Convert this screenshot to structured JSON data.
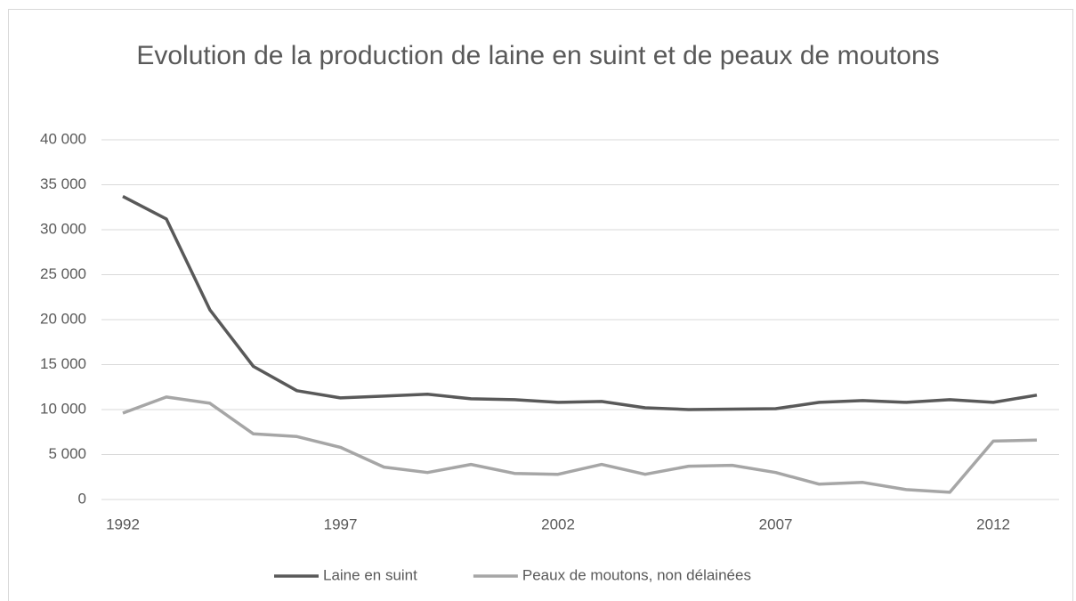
{
  "chart_data": {
    "type": "line",
    "title": "Evolution de la production de laine en suint et de peaux de moutons",
    "x": [
      1992,
      1993,
      1994,
      1995,
      1996,
      1997,
      1998,
      1999,
      2000,
      2001,
      2002,
      2003,
      2004,
      2005,
      2006,
      2007,
      2008,
      2009,
      2010,
      2011,
      2012,
      2013
    ],
    "series": [
      {
        "name": "Laine en suint",
        "color": "#595959",
        "values": [
          33700,
          31200,
          21100,
          14800,
          12100,
          11300,
          11500,
          11700,
          11200,
          11100,
          10800,
          10900,
          10200,
          10000,
          10050,
          10100,
          10800,
          11000,
          10800,
          11100,
          10800,
          11600
        ]
      },
      {
        "name": "Peaux de moutons, non délainées",
        "color": "#a6a6a6",
        "values": [
          9600,
          11400,
          10700,
          7300,
          7000,
          5800,
          3600,
          3000,
          3900,
          2900,
          2800,
          3900,
          2800,
          3700,
          3800,
          3000,
          1700,
          1900,
          1100,
          800,
          6500,
          6600
        ]
      }
    ],
    "xlim": [
      1992,
      2013
    ],
    "xticks": [
      1992,
      1997,
      2002,
      2007,
      2012
    ],
    "ylim": [
      0,
      40000
    ],
    "yticks": [
      0,
      {
        "value": 5000,
        "label": "5 000"
      },
      {
        "value": 10000,
        "label": "10 000"
      },
      {
        "value": 15000,
        "label": "15 000"
      },
      {
        "value": 20000,
        "label": "20 000"
      },
      {
        "value": 25000,
        "label": "25 000"
      },
      {
        "value": 30000,
        "label": "30 000"
      },
      {
        "value": 35000,
        "label": "35 000"
      },
      {
        "value": 40000,
        "label": "40 000"
      }
    ],
    "grid": true,
    "legend": "bottom"
  }
}
